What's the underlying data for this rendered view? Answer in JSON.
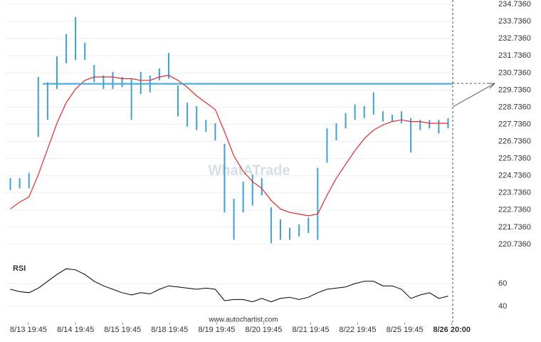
{
  "chart_data": [
    {
      "type": "ohlc",
      "bar_color": "#3aa0d8",
      "high": [
        224.6,
        224.6,
        224.9,
        230.5,
        230.2,
        231.7,
        233.0,
        234.0,
        232.5,
        231.2,
        230.6,
        230.8,
        230.5,
        230.4,
        230.8,
        230.6,
        231.0,
        231.9,
        230.0,
        229.0,
        228.8,
        228.0,
        227.8,
        226.6,
        223.4,
        224.4,
        224.8,
        224.6,
        222.9,
        222.2,
        221.7,
        221.9,
        222.3,
        225.2,
        227.5,
        227.8,
        228.4,
        228.9,
        228.8,
        229.6,
        228.5,
        228.3,
        228.5,
        228.1,
        228.0,
        228.0,
        228.0,
        228.1
      ],
      "low": [
        223.9,
        224.0,
        224.0,
        227.0,
        228.0,
        229.8,
        231.3,
        231.5,
        231.5,
        230.2,
        229.8,
        229.8,
        229.9,
        228.0,
        229.5,
        229.6,
        230.3,
        230.4,
        228.2,
        227.6,
        227.4,
        227.3,
        226.8,
        222.6,
        221.0,
        222.6,
        223.0,
        223.6,
        220.8,
        221.0,
        221.0,
        221.2,
        221.4,
        221.0,
        225.5,
        226.8,
        227.5,
        228.0,
        228.1,
        228.3,
        227.9,
        227.9,
        227.8,
        226.1,
        227.4,
        227.5,
        227.2,
        227.5
      ],
      "ma": {
        "color": "#e52b2b",
        "values": [
          222.8,
          223.2,
          223.5,
          224.8,
          226.3,
          227.8,
          229.0,
          229.8,
          230.3,
          230.5,
          230.5,
          230.5,
          230.4,
          230.4,
          230.3,
          230.3,
          230.5,
          230.6,
          230.3,
          229.9,
          229.4,
          229.0,
          228.6,
          227.3,
          225.9,
          225.0,
          224.4,
          224.0,
          223.3,
          222.8,
          222.6,
          222.5,
          222.4,
          222.5,
          223.6,
          224.6,
          225.4,
          226.2,
          226.9,
          227.4,
          227.7,
          227.9,
          228.0,
          227.9,
          227.9,
          227.8,
          227.8,
          227.8
        ]
      },
      "level": 230.1,
      "level_color": "#39a8e0",
      "xlim": [
        0,
        48
      ],
      "xticks": [
        {
          "value": 2.45,
          "label": "8/13 19:45"
        },
        {
          "value": 7.5,
          "label": "8/14 19:45"
        },
        {
          "value": 12.55,
          "label": "8/15 19:45"
        },
        {
          "value": 17.6,
          "label": "8/18 19:45"
        },
        {
          "value": 22.65,
          "label": "8/19 19:45"
        },
        {
          "value": 27.7,
          "label": "8/20 19:45"
        },
        {
          "value": 32.75,
          "label": "8/21 19:45"
        },
        {
          "value": 37.8,
          "label": "8/22 19:45"
        },
        {
          "value": 42.85,
          "label": "8/25 19:45"
        },
        {
          "value": 47.9,
          "label": "8/26 20:00"
        }
      ],
      "ylim": [
        219.82,
        234.99
      ],
      "yticks": [
        {
          "value": 220.736,
          "label": "220.7360"
        },
        {
          "value": 221.736,
          "label": "221.7360"
        },
        {
          "value": 222.736,
          "label": "222.7360"
        },
        {
          "value": 223.736,
          "label": "223.7360"
        },
        {
          "value": 224.736,
          "label": "224.7360"
        },
        {
          "value": 225.736,
          "label": "225.7360"
        },
        {
          "value": 226.736,
          "label": "226.7360"
        },
        {
          "value": 227.736,
          "label": "227.7360"
        },
        {
          "value": 228.736,
          "label": "228.7360"
        },
        {
          "value": 229.736,
          "label": "229.7360"
        },
        {
          "value": 230.736,
          "label": "230.7360"
        },
        {
          "value": 231.736,
          "label": "231.7360"
        },
        {
          "value": 232.736,
          "label": "232.7360"
        },
        {
          "value": 233.736,
          "label": "233.7360"
        },
        {
          "value": 234.736,
          "label": "234.7360"
        }
      ],
      "grid": true
    },
    {
      "type": "line",
      "title": "RSI",
      "color": "#000000",
      "values": [
        55,
        53,
        52,
        56,
        62,
        68,
        73,
        72,
        68,
        62,
        58,
        55,
        52,
        50,
        52,
        51,
        55,
        58,
        57,
        56,
        55,
        56,
        55,
        45,
        46,
        46,
        44,
        47,
        44,
        47,
        48,
        46,
        48,
        52,
        55,
        56,
        57,
        60,
        62,
        62,
        58,
        58,
        55,
        47,
        50,
        52,
        47,
        49
      ],
      "xlim": [
        0,
        48
      ],
      "ylim": [
        30.6,
        77.5
      ],
      "yticks": [
        40,
        60
      ],
      "grid": true
    }
  ],
  "watermark": "WhatATrade",
  "footer": "www.autochartist.com"
}
